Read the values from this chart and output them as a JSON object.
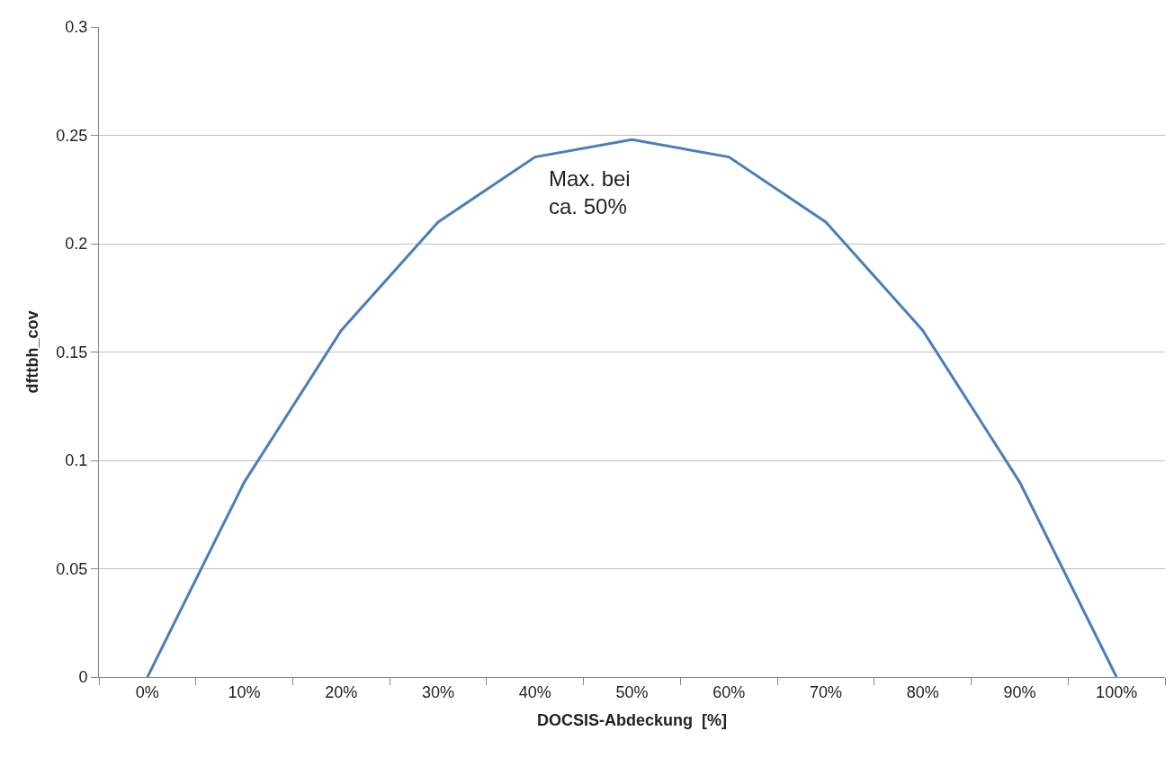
{
  "chart_data": {
    "type": "line",
    "xlabel": "DOCSIS-Abdeckung  [%]",
    "ylabel": "dfttbh_cov",
    "categories": [
      "0%",
      "10%",
      "20%",
      "30%",
      "40%",
      "50%",
      "60%",
      "70%",
      "80%",
      "90%",
      "100%"
    ],
    "series": [
      {
        "color": "#4a7ebb",
        "values": [
          0,
          0.09,
          0.16,
          0.21,
          0.24,
          0.248,
          0.24,
          0.21,
          0.16,
          0.09,
          0
        ]
      }
    ],
    "ylim": [
      0,
      0.3
    ],
    "yticks": [
      0,
      0.05,
      0.1,
      0.15,
      0.2,
      0.25,
      0.3
    ],
    "grid": "y",
    "marker": "none",
    "line_style": "solid",
    "annotations": [
      "Max. bei\nca. 50%"
    ]
  }
}
